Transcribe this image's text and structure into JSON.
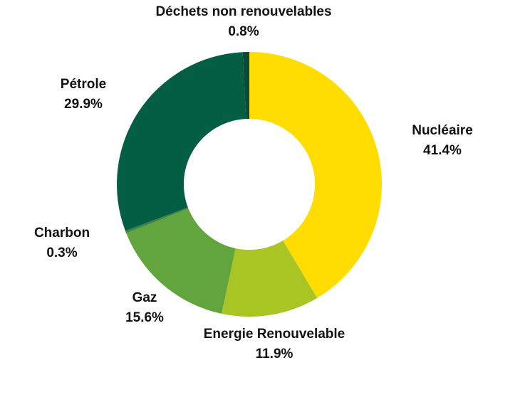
{
  "chart_data": {
    "type": "pie",
    "donut": true,
    "start": "top",
    "direction": "clockwise",
    "grid": false,
    "legend": "none",
    "slices": [
      {
        "label": "Nucléaire",
        "value": 41.4,
        "value_label": "41.4%",
        "color": "#FFDD00"
      },
      {
        "label": "Energie Renouvelable",
        "value": 11.9,
        "value_label": "11.9%",
        "color": "#A8C523"
      },
      {
        "label": "Gaz",
        "value": 15.6,
        "value_label": "15.6%",
        "color": "#62A53C"
      },
      {
        "label": "Charbon",
        "value": 0.3,
        "value_label": "0.3%",
        "color": "#3C8542"
      },
      {
        "label": "Pétrole",
        "value": 29.9,
        "value_label": "29.9%",
        "color": "#035E44"
      },
      {
        "label": "Déchets non renouvelables",
        "value": 0.8,
        "value_label": "0.8%",
        "color": "#0A4A38"
      }
    ]
  }
}
